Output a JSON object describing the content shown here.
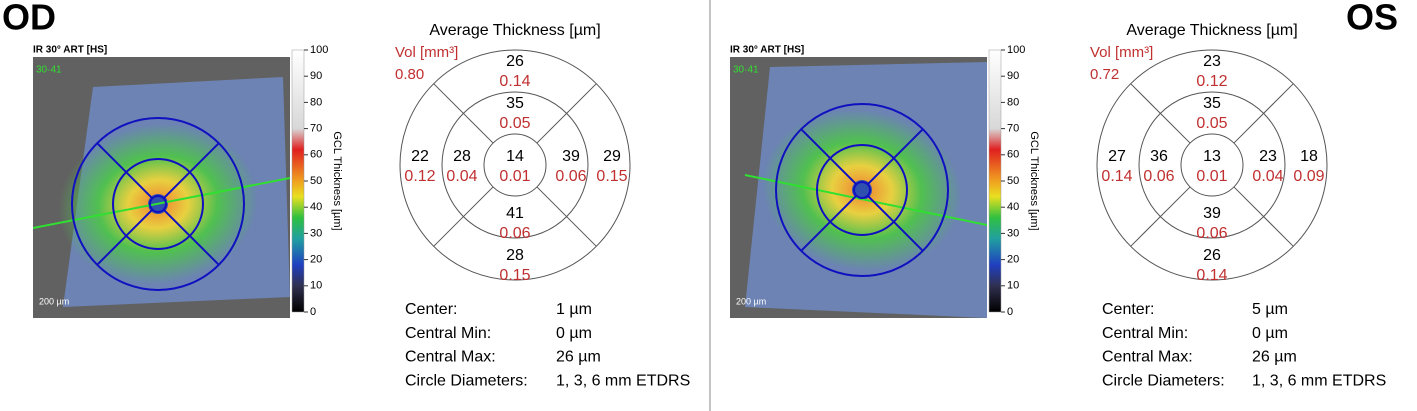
{
  "panels": [
    {
      "eye": "OD",
      "image_label": "IR 30° ART [HS]",
      "image_overlay": "30·41",
      "scale_bar": "200 µm",
      "colorbar": {
        "label": "GCL Thickness [µm]",
        "ticks": [
          100,
          90,
          80,
          70,
          60,
          50,
          40,
          30,
          20,
          10,
          0
        ]
      },
      "map": {
        "title": "Average Thickness [µm]",
        "vol_label": "Vol [mm³]",
        "total_vol": "0.80",
        "sectors": {
          "outer_top": {
            "thickness": "26",
            "volume": "0.14"
          },
          "inner_top": {
            "thickness": "35",
            "volume": "0.05"
          },
          "outer_left": {
            "thickness": "22",
            "volume": "0.12"
          },
          "inner_left": {
            "thickness": "28",
            "volume": "0.04"
          },
          "center": {
            "thickness": "14",
            "volume": "0.01"
          },
          "inner_right": {
            "thickness": "39",
            "volume": "0.06"
          },
          "outer_right": {
            "thickness": "29",
            "volume": "0.15"
          },
          "inner_bottom": {
            "thickness": "41",
            "volume": "0.06"
          },
          "outer_bottom": {
            "thickness": "28",
            "volume": "0.15"
          }
        }
      },
      "stats": [
        {
          "label": "Center:",
          "value": "1 µm"
        },
        {
          "label": "Central Min:",
          "value": "0 µm"
        },
        {
          "label": "Central Max:",
          "value": "26 µm"
        },
        {
          "label": "Circle Diameters:",
          "value": "1, 3, 6 mm ETDRS"
        }
      ]
    },
    {
      "eye": "OS",
      "image_label": "IR 30° ART [HS]",
      "image_overlay": "30·41",
      "scale_bar": "200 µm",
      "colorbar": {
        "label": "GCL Thickness [µm]",
        "ticks": [
          100,
          90,
          80,
          70,
          60,
          50,
          40,
          30,
          20,
          10,
          0
        ]
      },
      "map": {
        "title": "Average Thickness [µm]",
        "vol_label": "Vol [mm³]",
        "total_vol": "0.72",
        "sectors": {
          "outer_top": {
            "thickness": "23",
            "volume": "0.12"
          },
          "inner_top": {
            "thickness": "35",
            "volume": "0.05"
          },
          "outer_left": {
            "thickness": "27",
            "volume": "0.14"
          },
          "inner_left": {
            "thickness": "36",
            "volume": "0.06"
          },
          "center": {
            "thickness": "13",
            "volume": "0.01"
          },
          "inner_right": {
            "thickness": "23",
            "volume": "0.04"
          },
          "outer_right": {
            "thickness": "18",
            "volume": "0.09"
          },
          "inner_bottom": {
            "thickness": "39",
            "volume": "0.06"
          },
          "outer_bottom": {
            "thickness": "26",
            "volume": "0.14"
          }
        }
      },
      "stats": [
        {
          "label": "Center:",
          "value": "5 µm"
        },
        {
          "label": "Central Min:",
          "value": "0 µm"
        },
        {
          "label": "Central Max:",
          "value": "26 µm"
        },
        {
          "label": "Circle Diameters:",
          "value": "1, 3, 6 mm ETDRS"
        }
      ]
    }
  ]
}
